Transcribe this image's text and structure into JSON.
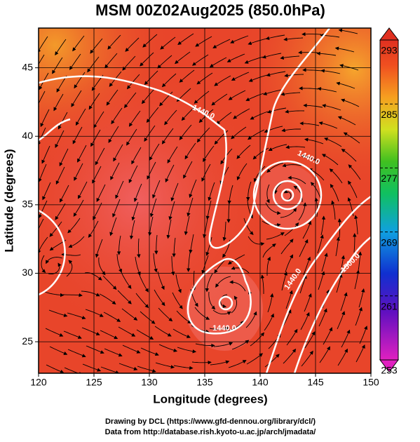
{
  "title": "MSM 00Z02Aug2025 (850.0hPa)",
  "map": {
    "xlabel": "Longitude (degrees)",
    "ylabel": "Latitude  (degrees)",
    "xlim": [
      120,
      150
    ],
    "ylim": [
      22.7,
      47.9
    ],
    "xticks": [
      120,
      125,
      130,
      135,
      140,
      145,
      150
    ],
    "yticks": [
      25,
      30,
      35,
      40,
      45
    ],
    "contour_labels": [
      "1440.0",
      "1440.0",
      "1440.0",
      "1440.0",
      "1500.0"
    ]
  },
  "colorbar": {
    "lim": [
      253,
      293
    ],
    "ticks": [
      253,
      261,
      269,
      277,
      285,
      293
    ]
  },
  "credits": [
    "Drawing by DCL (https://www.gfd-dennou.org/library/dcl/)",
    "Data from http://database.rish.kyoto-u.ac.jp/arch/jmadata/"
  ]
}
